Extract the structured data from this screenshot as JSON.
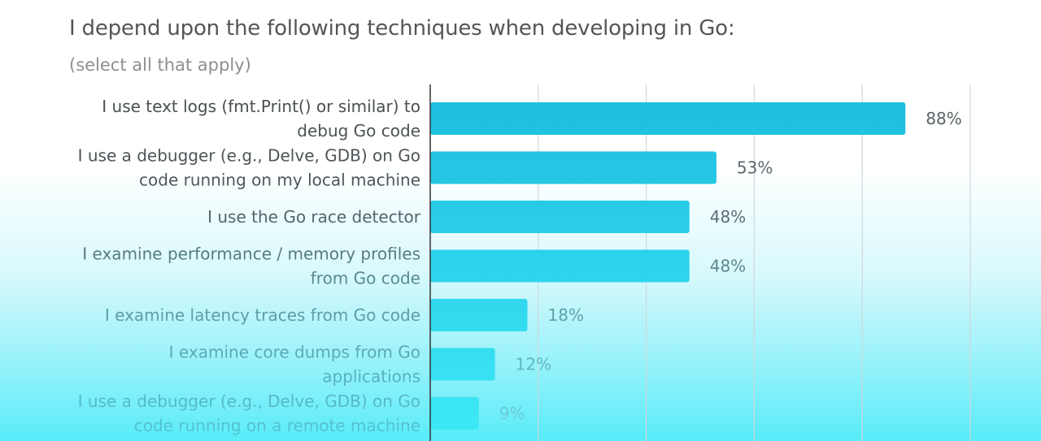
{
  "title": "I depend upon the following techniques when developing in Go:",
  "subtitle": "(select all that apply)",
  "colors": {
    "bar": "#1ab8dd",
    "bar_end": "#2fe1f2",
    "grid": "#cfd8dc",
    "axis": "#333333"
  },
  "chart_data": {
    "type": "bar",
    "orientation": "horizontal",
    "categories": [
      [
        "I use text logs (fmt.Print() or similar) to",
        "debug Go code"
      ],
      [
        "I use a debugger (e.g., Delve, GDB) on Go",
        "code running on my local machine"
      ],
      [
        "I use the Go race detector"
      ],
      [
        "I examine performance / memory profiles",
        "from Go code"
      ],
      [
        "I examine latency traces from Go code"
      ],
      [
        "I examine core dumps from Go",
        "applications"
      ],
      [
        "I use a debugger (e.g., Delve, GDB) on Go",
        "code running on a remote machine"
      ]
    ],
    "values": [
      88,
      53,
      48,
      48,
      18,
      12,
      9
    ],
    "value_labels": [
      "88%",
      "53%",
      "48%",
      "48%",
      "18%",
      "12%",
      "9%"
    ],
    "xlim": [
      0,
      100
    ],
    "grid": true
  }
}
